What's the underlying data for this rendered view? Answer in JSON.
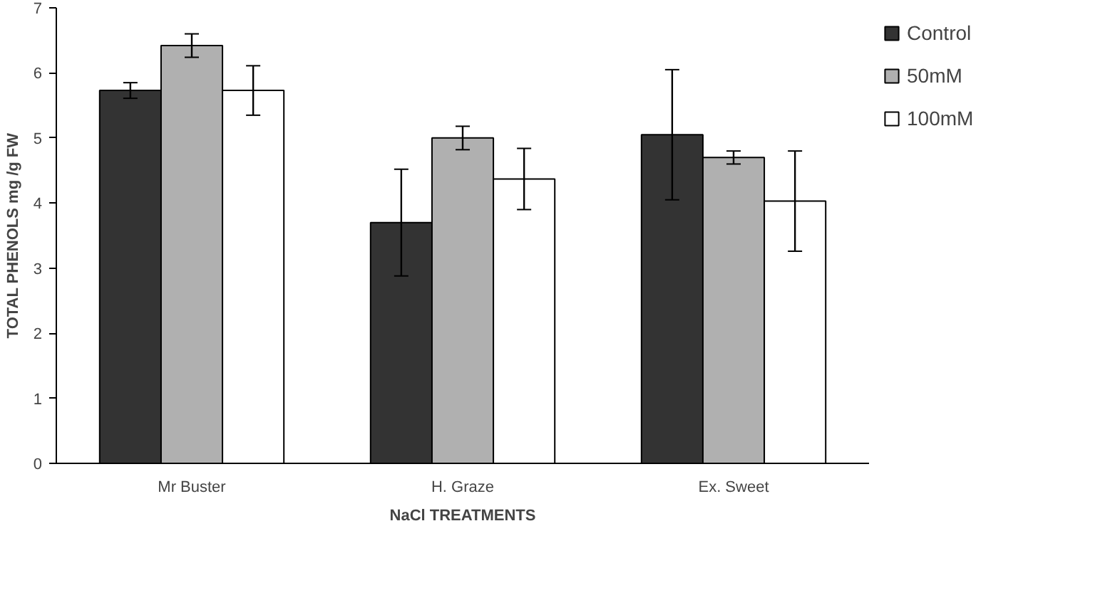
{
  "chart_data": {
    "type": "bar",
    "xlabel": "NaCl TREATMENTS",
    "ylabel": "TOTAL PHENOLS mg /g FW",
    "categories": [
      "Mr Buster",
      "H. Graze",
      "Ex. Sweet"
    ],
    "series": [
      {
        "name": "Control",
        "color": "#333333",
        "values": [
          5.73,
          3.7,
          5.05
        ],
        "errors": [
          0.12,
          0.82,
          1.0
        ]
      },
      {
        "name": "50mM",
        "color": "#b0b0b0",
        "values": [
          6.42,
          5.0,
          4.7
        ],
        "errors": [
          0.18,
          0.18,
          0.1
        ]
      },
      {
        "name": "100mM",
        "color": "#ffffff",
        "values": [
          5.73,
          4.37,
          4.03
        ],
        "errors": [
          0.38,
          0.47,
          0.77
        ]
      }
    ],
    "ylim": [
      0,
      7
    ],
    "yticks": [
      0,
      1,
      2,
      3,
      4,
      5,
      6,
      7
    ],
    "grid": false,
    "legend": "right"
  }
}
